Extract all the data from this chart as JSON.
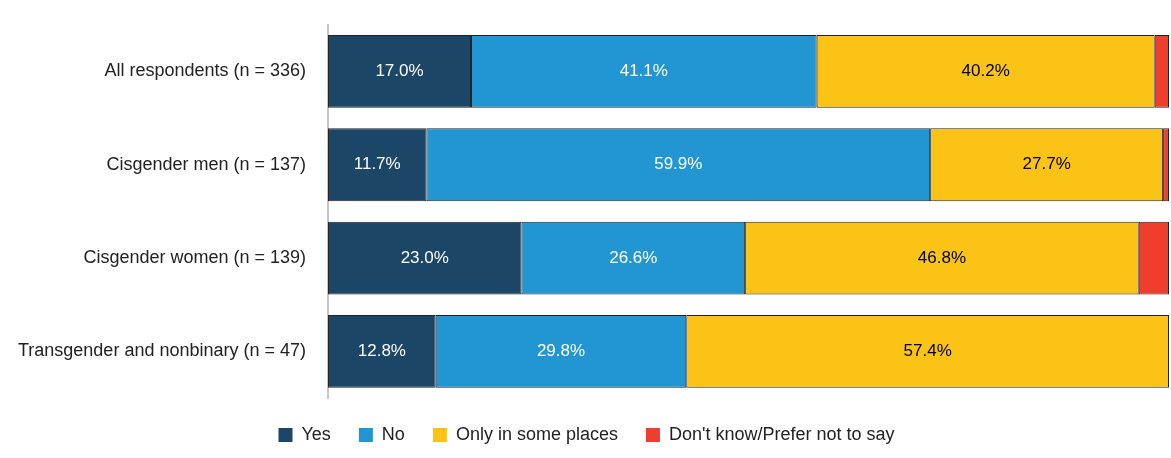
{
  "chart_data": {
    "type": "bar",
    "orientation": "horizontal",
    "stacked": true,
    "categories": [
      "All respondents (n = 336)",
      "Cisgender men (n = 137)",
      "Cisgender women (n = 139)",
      "Transgender and nonbinary (n = 47)"
    ],
    "series": [
      {
        "name": "Yes",
        "color": "#1b4668",
        "values": [
          17.0,
          11.7,
          23.0,
          12.8
        ],
        "value_labels": [
          "17.0%",
          "11.7%",
          "23.0%",
          "12.8%"
        ]
      },
      {
        "name": "No",
        "color": "#2196d3",
        "values": [
          41.1,
          59.9,
          26.6,
          29.8
        ],
        "value_labels": [
          "41.1%",
          "59.9%",
          "26.6%",
          "29.8%"
        ]
      },
      {
        "name": "Only in some places",
        "color": "#fbc316",
        "values": [
          40.2,
          27.7,
          46.8,
          57.4
        ],
        "value_labels": [
          "40.2%",
          "27.7%",
          "46.8%",
          "57.4%"
        ]
      },
      {
        "name": "Don't know/Prefer not to say",
        "color": "#ef3e2d",
        "values": [
          1.7,
          0.7,
          3.6,
          0
        ],
        "value_labels": [
          null,
          null,
          null,
          null
        ]
      }
    ],
    "xlim": [
      0,
      100
    ],
    "tick_labels": "y",
    "legend": "bottom"
  }
}
